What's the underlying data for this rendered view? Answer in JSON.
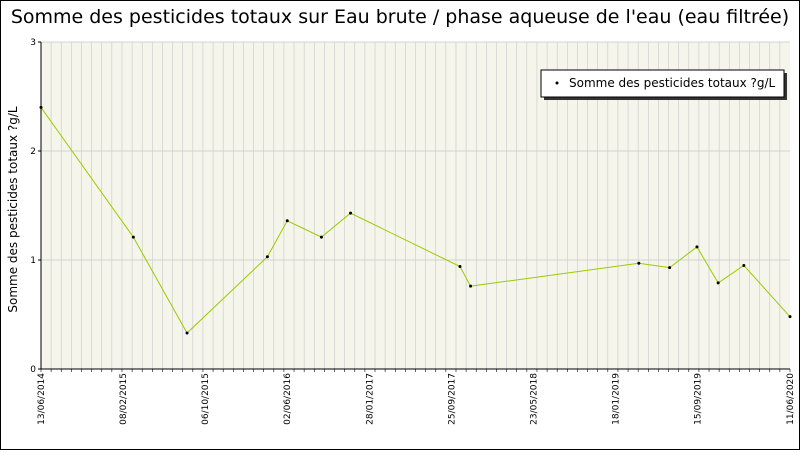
{
  "chart_data": {
    "type": "line",
    "title": "Somme des pesticides totaux sur Eau brute / phase aqueuse de l'eau (eau filtrée)",
    "ylabel": "Somme des pesticides totaux ?g/L",
    "xlabel": "",
    "ylim": [
      0,
      3
    ],
    "yticks": [
      "0",
      "1",
      "2",
      "3"
    ],
    "xlim": [
      "2014-06-13",
      "2020-06-11"
    ],
    "xticks": [
      {
        "date": "2014-06-13",
        "label": "13/06/2014"
      },
      {
        "date": "2015-02-08",
        "label": "08/02/2015"
      },
      {
        "date": "2015-10-06",
        "label": "06/10/2015"
      },
      {
        "date": "2016-06-02",
        "label": "02/06/2016"
      },
      {
        "date": "2017-01-28",
        "label": "28/01/2017"
      },
      {
        "date": "2017-09-25",
        "label": "25/09/2017"
      },
      {
        "date": "2018-05-23",
        "label": "23/05/2018"
      },
      {
        "date": "2019-01-18",
        "label": "18/01/2019"
      },
      {
        "date": "2019-09-15",
        "label": "15/09/2019"
      },
      {
        "date": "2020-06-11",
        "label": "11/06/2020"
      }
    ],
    "grid": true,
    "legend_position": "top-right",
    "line_color": "#99cc00",
    "background_color": "#f5f5eb",
    "series": [
      {
        "name": "Somme des pesticides totaux ?g/L",
        "points": [
          {
            "x": "2014-06-13",
            "y": 2.4
          },
          {
            "x": "2015-03-10",
            "y": 1.21
          },
          {
            "x": "2015-08-14",
            "y": 0.33
          },
          {
            "x": "2016-04-05",
            "y": 1.03
          },
          {
            "x": "2016-06-02",
            "y": 1.36
          },
          {
            "x": "2016-09-10",
            "y": 1.21
          },
          {
            "x": "2016-12-04",
            "y": 1.43
          },
          {
            "x": "2017-10-20",
            "y": 0.94
          },
          {
            "x": "2017-11-20",
            "y": 0.76
          },
          {
            "x": "2019-03-27",
            "y": 0.97
          },
          {
            "x": "2019-06-25",
            "y": 0.93
          },
          {
            "x": "2019-09-13",
            "y": 1.12
          },
          {
            "x": "2019-11-14",
            "y": 0.79
          },
          {
            "x": "2020-01-28",
            "y": 0.95
          },
          {
            "x": "2020-06-11",
            "y": 0.48
          }
        ]
      }
    ]
  }
}
